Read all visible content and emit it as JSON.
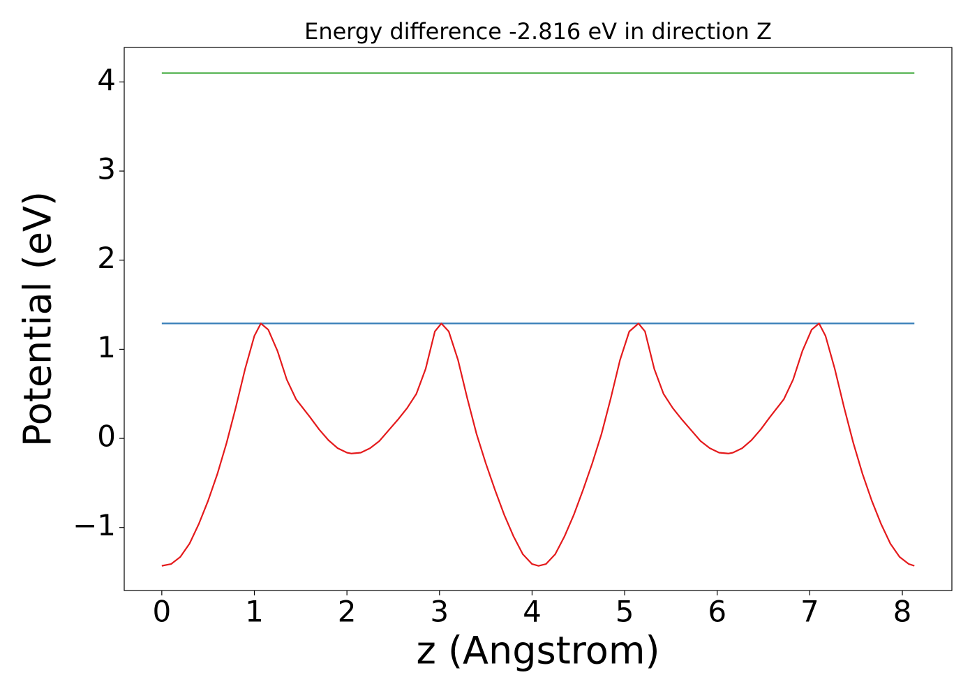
{
  "chart_data": {
    "type": "line",
    "title": "Energy difference -2.816 eV in direction Z",
    "x_label": "z (Angstrom)",
    "y_label": "Potential (eV)",
    "xlim": [
      -0.406,
      8.535
    ],
    "ylim": [
      -1.707,
      4.387
    ],
    "xticks": [
      0,
      1,
      2,
      3,
      4,
      5,
      6,
      7,
      8
    ],
    "yticks": [
      {
        "value": -1,
        "label": "−1"
      },
      0,
      1,
      2,
      3,
      4
    ],
    "grid": false,
    "series": [
      {
        "color": "#4daf4a",
        "x": [
          0,
          8.13
        ],
        "values": [
          4.1,
          4.1
        ]
      },
      {
        "color": "#377eb8",
        "x": [
          0,
          8.13
        ],
        "values": [
          1.29,
          1.29
        ]
      },
      {
        "color": "#e41a1c",
        "x": [
          0,
          0.1,
          0.2,
          0.3,
          0.4,
          0.5,
          0.6,
          0.7,
          0.8,
          0.9,
          1.0,
          1.07,
          1.15,
          1.25,
          1.35,
          1.45,
          1.6,
          1.7,
          1.8,
          1.9,
          2.0,
          2.05,
          2.15,
          2.25,
          2.35,
          2.45,
          2.55,
          2.65,
          2.75,
          2.85,
          2.95,
          3.02,
          3.1,
          3.2,
          3.3,
          3.4,
          3.5,
          3.6,
          3.7,
          3.8,
          3.9,
          4.0,
          4.07,
          4.15,
          4.25,
          4.35,
          4.45,
          4.55,
          4.65,
          4.75,
          4.85,
          4.95,
          5.05,
          5.15,
          5.22,
          5.32,
          5.42,
          5.52,
          5.62,
          5.72,
          5.82,
          5.92,
          6.02,
          6.12,
          6.17,
          6.27,
          6.37,
          6.47,
          6.57,
          6.72,
          6.82,
          6.92,
          7.02,
          7.1,
          7.17,
          7.27,
          7.37,
          7.47,
          7.57,
          7.67,
          7.77,
          7.87,
          7.97,
          8.07,
          8.13
        ],
        "values": [
          -1.43,
          -1.41,
          -1.33,
          -1.18,
          -0.96,
          -0.7,
          -0.4,
          -0.05,
          0.35,
          0.78,
          1.15,
          1.29,
          1.22,
          0.98,
          0.66,
          0.44,
          0.24,
          0.1,
          -0.02,
          -0.11,
          -0.16,
          -0.17,
          -0.16,
          -0.11,
          -0.03,
          0.09,
          0.21,
          0.34,
          0.5,
          0.78,
          1.2,
          1.29,
          1.2,
          0.88,
          0.45,
          0.05,
          -0.28,
          -0.58,
          -0.86,
          -1.1,
          -1.3,
          -1.41,
          -1.43,
          -1.41,
          -1.3,
          -1.1,
          -0.86,
          -0.58,
          -0.28,
          0.05,
          0.45,
          0.88,
          1.2,
          1.29,
          1.2,
          0.78,
          0.5,
          0.34,
          0.21,
          0.09,
          -0.03,
          -0.11,
          -0.16,
          -0.17,
          -0.16,
          -0.11,
          -0.02,
          0.1,
          0.24,
          0.44,
          0.66,
          0.98,
          1.22,
          1.29,
          1.15,
          0.78,
          0.35,
          -0.05,
          -0.4,
          -0.7,
          -0.96,
          -1.18,
          -1.33,
          -1.41,
          -1.43
        ]
      }
    ]
  }
}
